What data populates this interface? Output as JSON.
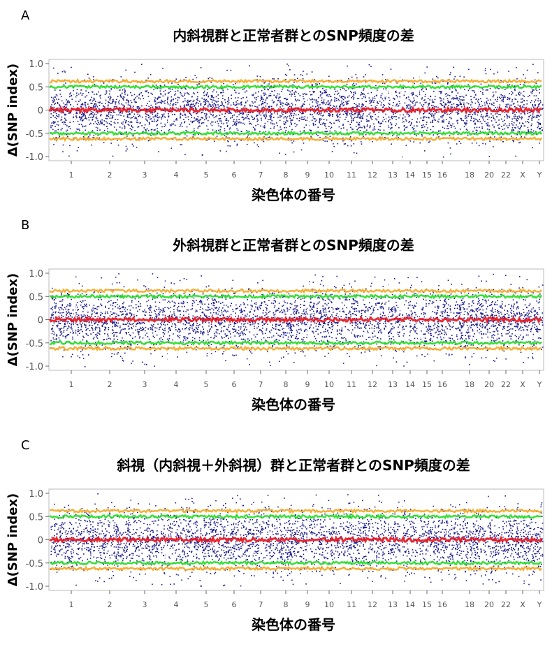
{
  "chart_data": [
    {
      "panel_label": "A",
      "title": "内斜視群と正常者群とのSNP頻度の差",
      "type": "scatter",
      "xlabel": "染色体の番号",
      "ylabel": "Δ(SNP index)",
      "ylim": [
        -1.0,
        1.0
      ],
      "yticks": [
        "1.0",
        "0.5",
        "0",
        "-0.5",
        "-1.0"
      ],
      "xticks": [
        "1",
        "2",
        "3",
        "4",
        "5",
        "6",
        "7",
        "8",
        "9",
        "10",
        "11",
        "12",
        "13",
        "14",
        "15",
        "16",
        "18",
        "20",
        "22",
        "X",
        "Y"
      ],
      "lines": [
        {
          "color": "#e8141c",
          "value": 0
        },
        {
          "color": "#22dd22",
          "value": 0.5
        },
        {
          "color": "#22dd22",
          "value": -0.5
        },
        {
          "color": "#f4a623",
          "value": 0.62
        },
        {
          "color": "#f4a623",
          "value": -0.62
        }
      ],
      "point_color": "#1a1a8c"
    },
    {
      "panel_label": "B",
      "title": "外斜視群と正常者群とのSNP頻度の差",
      "type": "scatter",
      "xlabel": "染色体の番号",
      "ylabel": "Δ(SNP index)",
      "ylim": [
        -1.0,
        1.0
      ],
      "yticks": [
        "1.0",
        "0.5",
        "0",
        "-0.5",
        "-1.0"
      ],
      "xticks": [
        "1",
        "2",
        "3",
        "4",
        "5",
        "6",
        "7",
        "8",
        "9",
        "10",
        "11",
        "12",
        "13",
        "14",
        "15",
        "16",
        "18",
        "20",
        "22",
        "X",
        "Y"
      ],
      "lines": [
        {
          "color": "#e8141c",
          "value": 0
        },
        {
          "color": "#22dd22",
          "value": 0.5
        },
        {
          "color": "#22dd22",
          "value": -0.5
        },
        {
          "color": "#f4a623",
          "value": 0.62
        },
        {
          "color": "#f4a623",
          "value": -0.62
        }
      ],
      "point_color": "#1a1a8c"
    },
    {
      "panel_label": "C",
      "title": "斜視（内斜視＋外斜視）群と正常者群とのSNP頻度の差",
      "type": "scatter",
      "xlabel": "染色体の番号",
      "ylabel": "Δ(SNP index)",
      "ylim": [
        -1.0,
        1.0
      ],
      "yticks": [
        "1.0",
        "0.5",
        "0",
        "-0.5",
        "-1.0"
      ],
      "xticks": [
        "1",
        "2",
        "3",
        "4",
        "5",
        "6",
        "7",
        "8",
        "9",
        "10",
        "11",
        "12",
        "13",
        "14",
        "15",
        "16",
        "18",
        "20",
        "22",
        "X",
        "Y"
      ],
      "lines": [
        {
          "color": "#e8141c",
          "value": 0
        },
        {
          "color": "#22dd22",
          "value": 0.5
        },
        {
          "color": "#22dd22",
          "value": -0.5
        },
        {
          "color": "#f4a623",
          "value": 0.62
        },
        {
          "color": "#f4a623",
          "value": -0.62
        }
      ],
      "point_color": "#1a1a8c"
    }
  ]
}
